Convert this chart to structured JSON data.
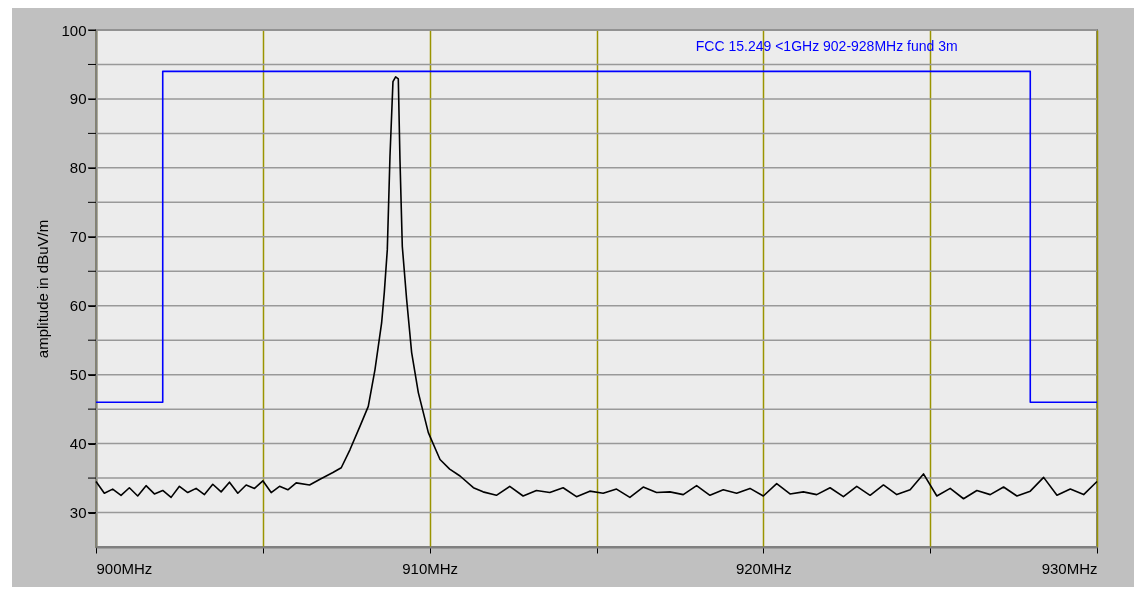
{
  "chart_data": {
    "type": "line",
    "ylabel": "amplitude in dBuV/m",
    "xlim": [
      900,
      930
    ],
    "ylim": [
      25,
      100
    ],
    "xticks": [
      {
        "value": 900,
        "label": "900MHz"
      },
      {
        "value": 905,
        "label": null
      },
      {
        "value": 910,
        "label": "910MHz"
      },
      {
        "value": 915,
        "label": null
      },
      {
        "value": 920,
        "label": "920MHz"
      },
      {
        "value": 925,
        "label": null
      },
      {
        "value": 930,
        "label": "930MHz"
      }
    ],
    "yticks": [
      30,
      {
        "value": 35,
        "label": null
      },
      40,
      {
        "value": 45,
        "label": null
      },
      50,
      {
        "value": 55,
        "label": null
      },
      60,
      {
        "value": 65,
        "label": null
      },
      70,
      {
        "value": 75,
        "label": null
      },
      80,
      {
        "value": 85,
        "label": null
      },
      90,
      {
        "value": 95,
        "label": null
      },
      100
    ],
    "grid": true,
    "series": [
      {
        "color": "#000000",
        "x": [
          900.0,
          900.25,
          900.5,
          900.75,
          901.0,
          901.25,
          901.5,
          901.75,
          902.0,
          902.25,
          902.5,
          902.75,
          903.0,
          903.25,
          903.5,
          903.75,
          904.0,
          904.25,
          904.5,
          904.75,
          905.0,
          905.25,
          905.5,
          905.75,
          906.0,
          906.4,
          906.7,
          907.1,
          907.35,
          907.61,
          907.91,
          908.16,
          908.36,
          908.56,
          908.64,
          908.73,
          908.81,
          908.9,
          908.98,
          909.06,
          909.11,
          909.18,
          909.31,
          909.46,
          909.66,
          909.96,
          910.31,
          910.6,
          910.91,
          911.31,
          911.6,
          912.0,
          912.4,
          912.8,
          913.2,
          913.6,
          914.0,
          914.4,
          914.8,
          915.2,
          915.6,
          916.0,
          916.4,
          916.8,
          917.2,
          917.6,
          918.0,
          918.4,
          918.8,
          919.2,
          919.6,
          920.0,
          920.4,
          920.8,
          921.2,
          921.6,
          922.0,
          922.4,
          922.8,
          923.2,
          923.6,
          924.0,
          924.4,
          924.8,
          925.2,
          925.6,
          926.0,
          926.4,
          926.8,
          927.2,
          927.6,
          928.0,
          928.4,
          928.8,
          929.2,
          929.6,
          930.0
        ],
        "values": [
          34.5,
          32.8,
          33.4,
          32.5,
          33.6,
          32.4,
          33.9,
          32.7,
          33.2,
          32.2,
          33.8,
          32.9,
          33.5,
          32.6,
          34.1,
          33.0,
          34.4,
          32.8,
          34.0,
          33.5,
          34.6,
          32.9,
          33.8,
          33.3,
          34.3,
          34.0,
          34.8,
          35.8,
          36.5,
          39.1,
          42.5,
          45.4,
          50.7,
          57.5,
          61.9,
          68.1,
          81.6,
          92.5,
          93.2,
          92.9,
          81.2,
          68.6,
          60.9,
          53.2,
          47.4,
          41.6,
          37.7,
          36.3,
          35.3,
          33.6,
          33.0,
          32.5,
          33.8,
          32.4,
          33.2,
          32.9,
          33.6,
          32.3,
          33.1,
          32.8,
          33.4,
          32.2,
          33.7,
          32.9,
          33.0,
          32.6,
          33.9,
          32.5,
          33.3,
          32.8,
          33.5,
          32.4,
          34.2,
          32.7,
          33.0,
          32.6,
          33.6,
          32.3,
          33.8,
          32.5,
          34.0,
          32.6,
          33.3,
          35.6,
          32.4,
          33.5,
          32.0,
          33.2,
          32.6,
          33.7,
          32.4,
          33.1,
          35.1,
          32.5,
          33.4,
          32.6,
          34.5
        ]
      },
      {
        "type": "step",
        "name": "FCC 15.249 <1GHz 902-928MHz fund 3m",
        "color": "#0000ff",
        "x": [
          900,
          902,
          928,
          930
        ],
        "values": [
          46,
          94,
          46,
          46
        ]
      }
    ]
  }
}
